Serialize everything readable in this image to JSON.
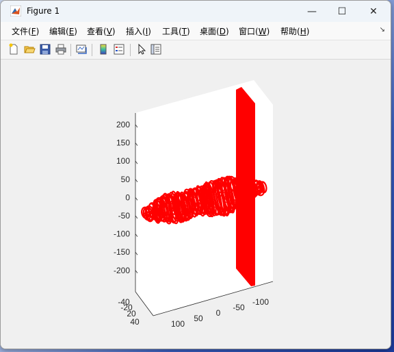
{
  "window": {
    "title": "Figure 1",
    "minimize_glyph": "—",
    "maximize_glyph": "☐",
    "close_glyph": "✕"
  },
  "menu": {
    "items": [
      {
        "label": "文件(",
        "key": "F",
        "end": ")"
      },
      {
        "label": "编辑(",
        "key": "E",
        "end": ")"
      },
      {
        "label": "查看(",
        "key": "V",
        "end": ")"
      },
      {
        "label": "插入(",
        "key": "I",
        "end": ")"
      },
      {
        "label": "工具(",
        "key": "T",
        "end": ")"
      },
      {
        "label": "桌面(",
        "key": "D",
        "end": ")"
      },
      {
        "label": "窗口(",
        "key": "W",
        "end": ")"
      },
      {
        "label": "帮助(",
        "key": "H",
        "end": ")"
      }
    ],
    "overflow_glyph": "↘"
  },
  "toolbar": {
    "icons": [
      "new-figure-icon",
      "open-folder-icon",
      "save-icon",
      "print-icon",
      "link-plot-icon",
      "colorbar-icon",
      "legend-icon",
      "pointer-icon",
      "property-inspector-icon"
    ]
  },
  "plot": {
    "z_ticks": [
      "200",
      "150",
      "100",
      "50",
      "0",
      "-50",
      "-100",
      "-150",
      "-200"
    ],
    "x_ticks": [
      "100",
      "50",
      "0",
      "-50",
      "-100"
    ],
    "y_ticks": [
      "-40",
      "-20",
      "20",
      "40"
    ],
    "series_color": "#ff0000"
  }
}
